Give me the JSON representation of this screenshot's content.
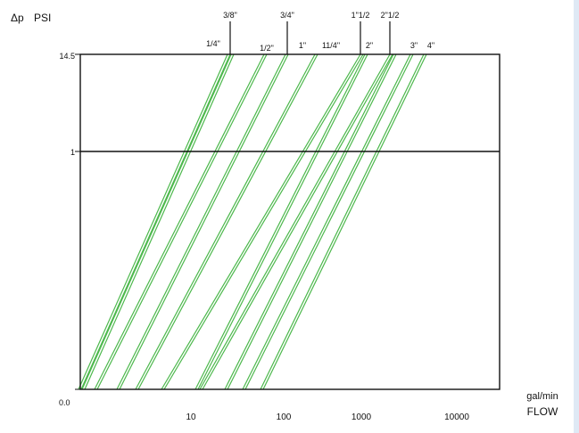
{
  "chart_data": {
    "type": "line",
    "title": "",
    "ylabel_symbol": "Δp",
    "ylabel_unit": "PSI",
    "xlabel_unit": "gal/min",
    "xlabel": "FLOW",
    "y_scale": "log",
    "x_scale": "log",
    "y_ticks": [
      "14.5",
      "1",
      "0.0"
    ],
    "x_ticks": [
      "10",
      "100",
      "1000",
      "10000"
    ],
    "reference_line": "1",
    "line_color": "#4cb84c",
    "series": [
      {
        "name": "1/4\"",
        "label_row": "lower"
      },
      {
        "name": "3/8\"",
        "label_row": "upper"
      },
      {
        "name": "1/2\"",
        "label_row": "lower"
      },
      {
        "name": "3/4\"",
        "label_row": "upper"
      },
      {
        "name": "1\"",
        "label_row": "lower"
      },
      {
        "name": "11/4\"",
        "label_row": "lower"
      },
      {
        "name": "1\"1/2",
        "label_row": "upper"
      },
      {
        "name": "2\"",
        "label_row": "lower"
      },
      {
        "name": "2\"1/2",
        "label_row": "upper"
      },
      {
        "name": "3\"",
        "label_row": "lower"
      },
      {
        "name": "4\"",
        "label_row": "lower"
      }
    ]
  }
}
